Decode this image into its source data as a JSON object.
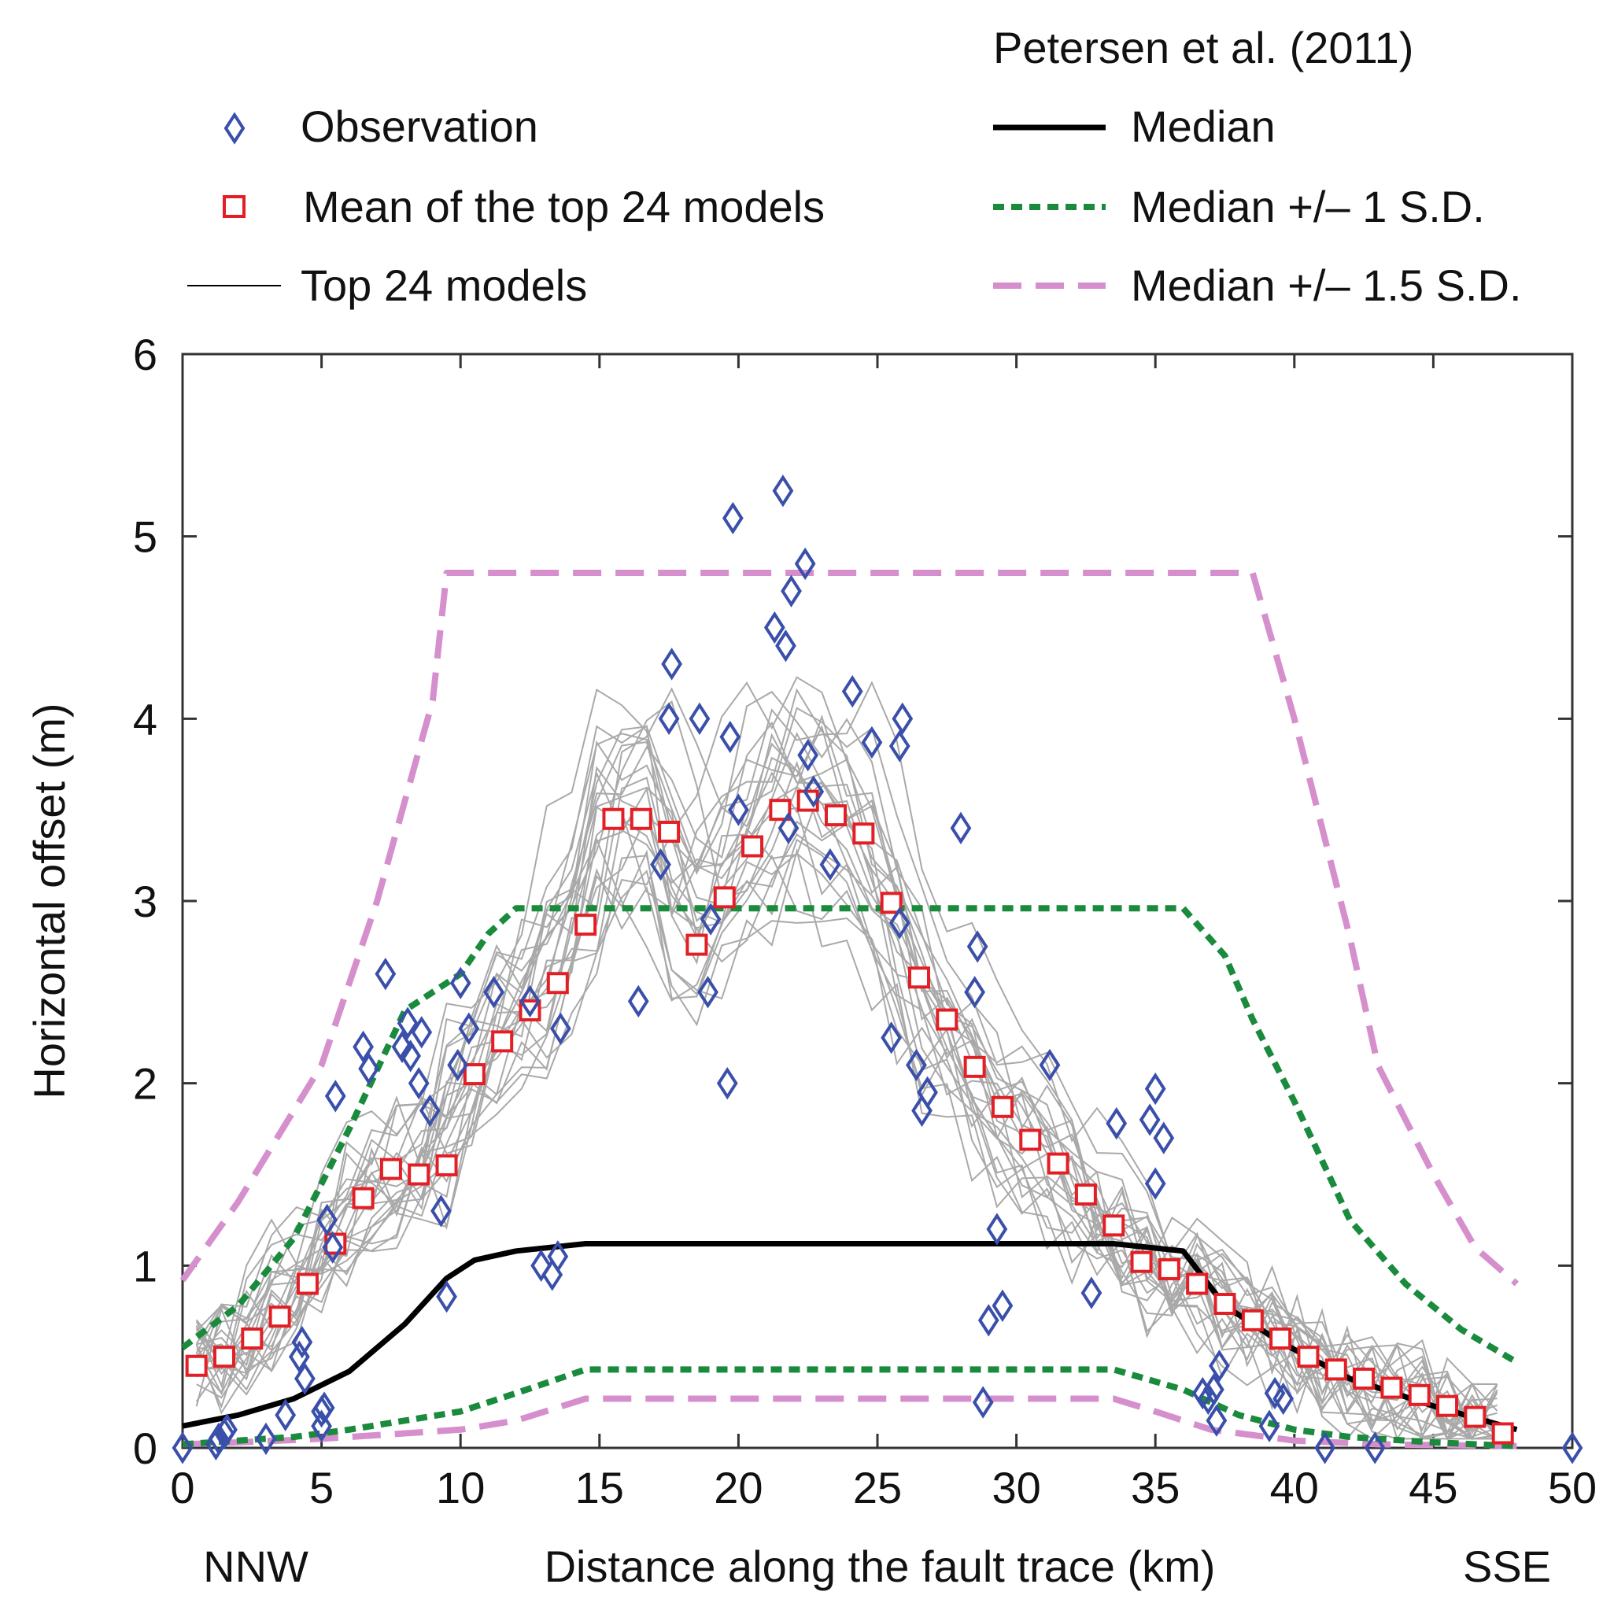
{
  "chart_data": {
    "type": "scatter",
    "title": "",
    "xlabel": "Distance along the fault trace (km)",
    "ylabel": "Horizontal offset (m)",
    "x_end_labels": {
      "left": "NNW",
      "right": "SSE"
    },
    "xlim": [
      0,
      50
    ],
    "ylim": [
      0,
      6
    ],
    "xticks": [
      0,
      5,
      10,
      15,
      20,
      25,
      30,
      35,
      40,
      45,
      50
    ],
    "yticks": [
      0,
      1,
      2,
      3,
      4,
      5,
      6
    ],
    "xtick_labels": [
      "0",
      "5",
      "10",
      "15",
      "20",
      "25",
      "30",
      "35",
      "40",
      "45",
      "50"
    ],
    "ytick_labels": [
      "0",
      "1",
      "2",
      "3",
      "4",
      "5",
      "6"
    ],
    "legend": {
      "observation": "Observation",
      "mean": "Mean of the top 24 models",
      "models": "Top 24 models",
      "petersen_title": "Petersen et al. (2011)",
      "median": "Median",
      "sd1": "Median +/– 1 S.D.",
      "sd15": "Median +/– 1.5 S.D."
    },
    "colors": {
      "observation": "#3a4faa",
      "mean": "#e31e24",
      "models": "#a9a9a9",
      "median": "#000000",
      "sd1": "#1a8a3c",
      "sd15": "#d68fcd"
    },
    "observation": [
      [
        0,
        0
      ],
      [
        1.2,
        0.02
      ],
      [
        1.3,
        0.05
      ],
      [
        1.5,
        0.08
      ],
      [
        1.6,
        0.1
      ],
      [
        3.0,
        0.05
      ],
      [
        3.7,
        0.18
      ],
      [
        4.2,
        0.5
      ],
      [
        4.3,
        0.58
      ],
      [
        4.4,
        0.38
      ],
      [
        5.0,
        0.12
      ],
      [
        5.0,
        0.2
      ],
      [
        5.1,
        0.22
      ],
      [
        5.2,
        1.25
      ],
      [
        5.4,
        1.1
      ],
      [
        5.5,
        1.93
      ],
      [
        6.5,
        2.2
      ],
      [
        6.7,
        2.08
      ],
      [
        7.3,
        2.6
      ],
      [
        7.9,
        2.2
      ],
      [
        8.1,
        2.33
      ],
      [
        8.2,
        2.15
      ],
      [
        8.5,
        2.0
      ],
      [
        8.6,
        2.28
      ],
      [
        8.9,
        1.85
      ],
      [
        9.3,
        1.3
      ],
      [
        9.5,
        0.83
      ],
      [
        9.9,
        2.1
      ],
      [
        10.0,
        2.55
      ],
      [
        10.3,
        2.3
      ],
      [
        11.2,
        2.5
      ],
      [
        12.5,
        2.45
      ],
      [
        12.9,
        1.0
      ],
      [
        13.3,
        0.95
      ],
      [
        13.5,
        1.05
      ],
      [
        13.6,
        2.3
      ],
      [
        16.4,
        2.45
      ],
      [
        17.2,
        3.2
      ],
      [
        17.5,
        4.0
      ],
      [
        17.6,
        4.3
      ],
      [
        18.6,
        4.0
      ],
      [
        18.9,
        2.5
      ],
      [
        19.0,
        2.9
      ],
      [
        19.6,
        2.0
      ],
      [
        19.7,
        3.9
      ],
      [
        19.8,
        5.1
      ],
      [
        20.0,
        3.5
      ],
      [
        21.3,
        4.5
      ],
      [
        21.6,
        5.25
      ],
      [
        21.7,
        4.4
      ],
      [
        21.8,
        3.4
      ],
      [
        21.9,
        4.7
      ],
      [
        22.4,
        4.85
      ],
      [
        22.5,
        3.8
      ],
      [
        22.7,
        3.6
      ],
      [
        23.3,
        3.2
      ],
      [
        24.1,
        4.15
      ],
      [
        24.8,
        3.87
      ],
      [
        25.8,
        3.85
      ],
      [
        25.9,
        4.0
      ],
      [
        25.5,
        2.25
      ],
      [
        25.8,
        2.88
      ],
      [
        26.4,
        2.1
      ],
      [
        26.6,
        1.85
      ],
      [
        26.8,
        1.95
      ],
      [
        28.0,
        3.4
      ],
      [
        28.5,
        2.5
      ],
      [
        28.6,
        2.75
      ],
      [
        28.8,
        0.25
      ],
      [
        29.0,
        0.7
      ],
      [
        29.3,
        1.2
      ],
      [
        29.5,
        0.78
      ],
      [
        31.2,
        2.1
      ],
      [
        32.7,
        0.85
      ],
      [
        33.6,
        1.78
      ],
      [
        34.8,
        1.8
      ],
      [
        35.0,
        1.45
      ],
      [
        35.0,
        1.97
      ],
      [
        35.3,
        1.7
      ],
      [
        36.7,
        0.3
      ],
      [
        36.9,
        0.27
      ],
      [
        37.1,
        0.32
      ],
      [
        37.2,
        0.15
      ],
      [
        37.3,
        0.45
      ],
      [
        39.1,
        0.12
      ],
      [
        39.3,
        0.3
      ],
      [
        39.6,
        0.27
      ],
      [
        41.1,
        0
      ],
      [
        42.9,
        0
      ],
      [
        50,
        0
      ]
    ],
    "mean": [
      [
        0.5,
        0.45
      ],
      [
        1.5,
        0.5
      ],
      [
        2.5,
        0.6
      ],
      [
        3.5,
        0.72
      ],
      [
        4.5,
        0.9
      ],
      [
        5.5,
        1.12
      ],
      [
        6.5,
        1.37
      ],
      [
        7.5,
        1.53
      ],
      [
        8.5,
        1.5
      ],
      [
        9.5,
        1.55
      ],
      [
        10.5,
        2.05
      ],
      [
        11.5,
        2.23
      ],
      [
        12.5,
        2.4
      ],
      [
        13.5,
        2.55
      ],
      [
        14.5,
        2.87
      ],
      [
        15.5,
        3.45
      ],
      [
        16.5,
        3.45
      ],
      [
        17.5,
        3.38
      ],
      [
        18.5,
        2.76
      ],
      [
        19.5,
        3.02
      ],
      [
        20.5,
        3.3
      ],
      [
        21.5,
        3.5
      ],
      [
        22.5,
        3.55
      ],
      [
        23.5,
        3.47
      ],
      [
        24.5,
        3.37
      ],
      [
        25.5,
        2.99
      ],
      [
        26.5,
        2.58
      ],
      [
        27.5,
        2.35
      ],
      [
        28.5,
        2.09
      ],
      [
        29.5,
        1.87
      ],
      [
        30.5,
        1.69
      ],
      [
        31.5,
        1.56
      ],
      [
        32.5,
        1.39
      ],
      [
        33.5,
        1.22
      ],
      [
        34.5,
        1.02
      ],
      [
        35.5,
        0.98
      ],
      [
        36.5,
        0.9
      ],
      [
        37.5,
        0.79
      ],
      [
        38.5,
        0.7
      ],
      [
        39.5,
        0.6
      ],
      [
        40.5,
        0.5
      ],
      [
        41.5,
        0.43
      ],
      [
        42.5,
        0.38
      ],
      [
        43.5,
        0.33
      ],
      [
        44.5,
        0.29
      ],
      [
        45.5,
        0.23
      ],
      [
        46.5,
        0.17
      ],
      [
        47.5,
        0.08
      ]
    ],
    "median": [
      [
        0,
        0.12
      ],
      [
        2,
        0.18
      ],
      [
        4,
        0.27
      ],
      [
        6,
        0.42
      ],
      [
        8,
        0.68
      ],
      [
        9.5,
        0.93
      ],
      [
        10.5,
        1.03
      ],
      [
        12,
        1.08
      ],
      [
        14.5,
        1.12
      ],
      [
        33.5,
        1.12
      ],
      [
        36,
        1.08
      ],
      [
        37.5,
        0.78
      ],
      [
        39.5,
        0.58
      ],
      [
        42,
        0.38
      ],
      [
        45,
        0.23
      ],
      [
        48,
        0.1
      ]
    ],
    "sd1_upper": [
      [
        0,
        0.55
      ],
      [
        2,
        0.78
      ],
      [
        4,
        1.15
      ],
      [
        6,
        1.75
      ],
      [
        8,
        2.4
      ],
      [
        10,
        2.6
      ],
      [
        11,
        2.82
      ],
      [
        12,
        2.96
      ],
      [
        36,
        2.96
      ],
      [
        37.5,
        2.7
      ],
      [
        38.5,
        2.35
      ],
      [
        40,
        1.9
      ],
      [
        42,
        1.25
      ],
      [
        44,
        0.9
      ],
      [
        46,
        0.65
      ],
      [
        48,
        0.47
      ]
    ],
    "sd1_lower": [
      [
        0,
        0.02
      ],
      [
        2,
        0.04
      ],
      [
        4,
        0.06
      ],
      [
        6,
        0.1
      ],
      [
        8,
        0.15
      ],
      [
        10,
        0.2
      ],
      [
        12,
        0.3
      ],
      [
        14.5,
        0.43
      ],
      [
        33.5,
        0.43
      ],
      [
        36,
        0.32
      ],
      [
        38,
        0.18
      ],
      [
        40,
        0.1
      ],
      [
        42,
        0.06
      ],
      [
        45,
        0.03
      ],
      [
        48,
        0.01
      ]
    ],
    "sd15_upper": [
      [
        0,
        0.92
      ],
      [
        2,
        1.35
      ],
      [
        5,
        2.1
      ],
      [
        7,
        3.0
      ],
      [
        9,
        4.1
      ],
      [
        9.5,
        4.8
      ],
      [
        38.5,
        4.8
      ],
      [
        40,
        4.0
      ],
      [
        42,
        2.8
      ],
      [
        43,
        2.1
      ],
      [
        45,
        1.5
      ],
      [
        46.5,
        1.1
      ],
      [
        48,
        0.9
      ]
    ],
    "sd15_lower": [
      [
        0,
        0.02
      ],
      [
        2,
        0.03
      ],
      [
        5,
        0.05
      ],
      [
        8,
        0.08
      ],
      [
        10,
        0.1
      ],
      [
        12,
        0.15
      ],
      [
        14.5,
        0.27
      ],
      [
        33.5,
        0.27
      ],
      [
        35,
        0.2
      ],
      [
        37,
        0.1
      ],
      [
        40,
        0.04
      ],
      [
        43,
        0.02
      ],
      [
        48,
        0.01
      ]
    ]
  }
}
